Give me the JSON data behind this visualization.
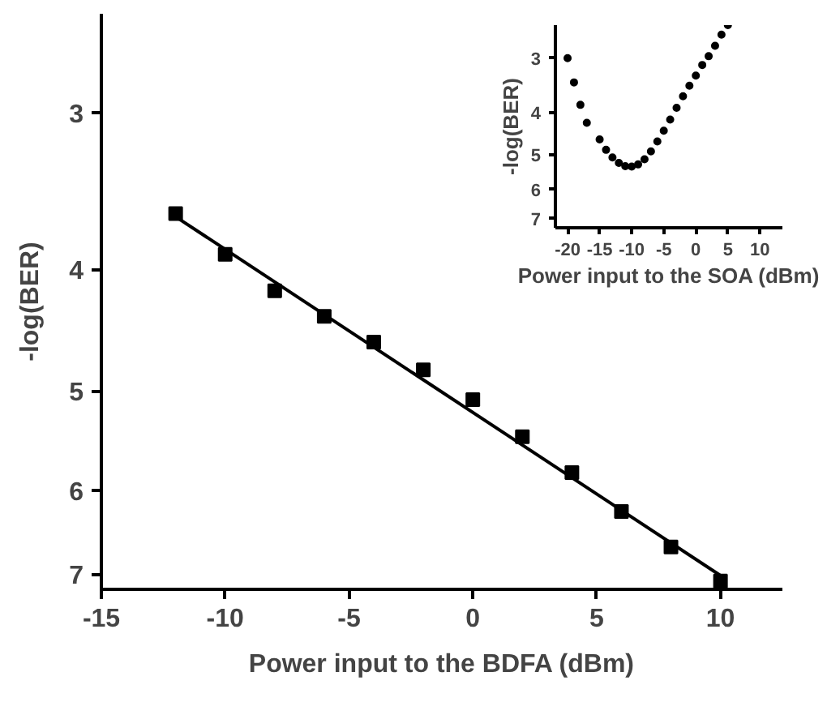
{
  "chart_data": [
    {
      "type": "scatter",
      "xlabel": "Power input to the BDFA (dBm)",
      "ylabel": "-log(BER)",
      "log": "y",
      "xlim": [
        -15,
        12.5
      ],
      "ylim": [
        7.2,
        2.5
      ],
      "xticks": [
        -15,
        -10,
        -5,
        0,
        5,
        10
      ],
      "yticks": [
        3,
        4,
        5,
        6,
        7
      ],
      "series": [
        {
          "color": "#000000",
          "marker": "square",
          "x": [
            -12,
            -10,
            -8,
            -6,
            -4,
            -2,
            0,
            2,
            4,
            6,
            8,
            10
          ],
          "values": [
            3.61,
            3.89,
            4.16,
            4.36,
            4.57,
            4.81,
            5.08,
            5.44,
            5.81,
            6.24,
            6.66,
            7.09
          ]
        },
        {
          "type": "line",
          "marker": "none",
          "color": "#000000",
          "x": [
            -12,
            10
          ],
          "values": [
            3.63,
            7.02
          ]
        }
      ]
    },
    {
      "type": "scatter",
      "xlabel": "Power input to the SOA (dBm)",
      "ylabel": "-log(BER)",
      "log": "y",
      "marker": "circle",
      "xlim": [
        -21.9,
        13.5
      ],
      "ylim": [
        7.35,
        2.52
      ],
      "xticks": [
        -20,
        -15,
        -10,
        -5,
        0,
        5,
        10
      ],
      "yticks": [
        3,
        4,
        5,
        6,
        7
      ],
      "series": [
        {
          "color": "#000000",
          "x": [
            -20,
            -19,
            -18,
            -17,
            -15,
            -14,
            -13,
            -12,
            -11,
            -10,
            -9,
            -8,
            -7,
            -6,
            -5,
            -4,
            -3,
            -2,
            -1,
            0,
            1,
            2,
            3,
            4,
            5
          ],
          "values": [
            3.0,
            3.41,
            3.84,
            4.22,
            4.61,
            4.87,
            5.07,
            5.22,
            5.31,
            5.32,
            5.26,
            5.12,
            4.91,
            4.66,
            4.4,
            4.15,
            3.9,
            3.67,
            3.47,
            3.29,
            3.11,
            2.97,
            2.81,
            2.65,
            2.52
          ]
        }
      ]
    }
  ]
}
